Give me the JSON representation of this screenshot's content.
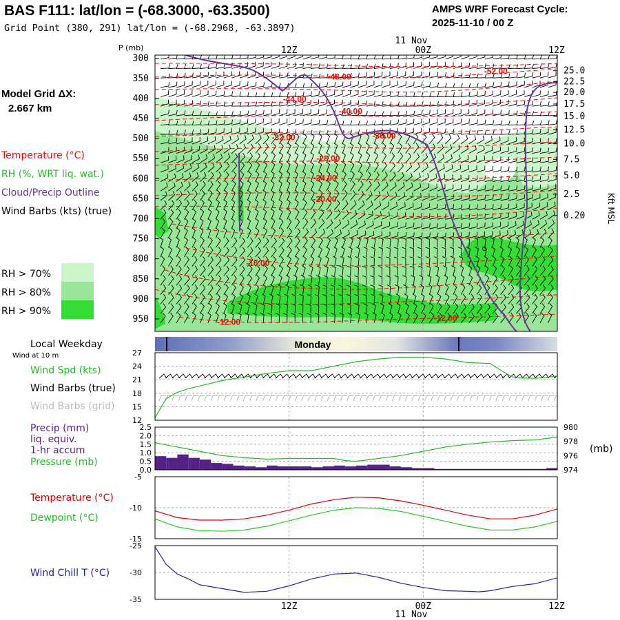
{
  "header": {
    "title": "BAS F111:  lat/lon = (-68.3000, -63.3500)",
    "subtitle": "Grid Point (380, 291) lat/lon = (-68.2968, -63.3897)",
    "cycle_line1": "AMPS WRF Forecast Cycle:",
    "cycle_line2": "2025-11-10 / 00  Z"
  },
  "model_grid": {
    "label": "Model Grid ΔX:",
    "value": "2.667 km"
  },
  "legend": {
    "temperature": "Temperature (°C)",
    "rh": "RH (%, WRT liq. wat.)",
    "cloud": "Cloud/Precip Outline",
    "wind": "Wind Barbs (kts) (true)",
    "rh70": "RH > 70%",
    "rh80": "RH > 80%",
    "rh90": "RH > 90%"
  },
  "colors": {
    "rh70": "#ccf5cc",
    "rh80": "#99e699",
    "rh90": "#33dd33",
    "temp": "#ff0000",
    "cloud": "#663399",
    "dewpoint": "#22cc22",
    "windchill": "#2222aa",
    "precip": "#552288"
  },
  "time_axis": {
    "top_labels": [
      "12Z",
      "00Z",
      "12Z"
    ],
    "date_label": "11 Nov",
    "bottom_labels": [
      "12Z",
      "00Z",
      "12Z"
    ],
    "times_hours": [
      12,
      24,
      36
    ],
    "range_hours": [
      0,
      36
    ]
  },
  "local_weekday": {
    "label": "Local Weekday",
    "sublabel": "Wind at 10 m",
    "day": "Monday"
  },
  "chart_data": [
    {
      "type": "heatmap",
      "title": "Time-height cross section",
      "ylabel_left": "P (mb)",
      "ylabel_right": "Kft MSL",
      "pressure_ticks": [
        300,
        350,
        400,
        450,
        500,
        550,
        600,
        650,
        700,
        750,
        800,
        850,
        900,
        950
      ],
      "height_ticks": [
        "25.0",
        "22.5",
        "20.0",
        "17.5",
        "15.0",
        "12.5",
        "10.0",
        "7.5",
        "5.0",
        "2.5",
        "0.20"
      ],
      "height_tick_pressures": [
        331,
        358,
        385,
        414,
        445,
        478,
        513,
        552,
        593,
        639,
        692
      ],
      "temp_contour_labels": [
        {
          "text": "-48.00",
          "t": 16.5,
          "p": 346
        },
        {
          "text": "-52.00",
          "t": 30.5,
          "p": 332
        },
        {
          "text": "-44.00",
          "t": 12.5,
          "p": 402
        },
        {
          "text": "-40.00",
          "t": 17.5,
          "p": 432
        },
        {
          "text": "-32.00",
          "t": 11.5,
          "p": 497
        },
        {
          "text": "-36.00",
          "t": 20.5,
          "p": 493
        },
        {
          "text": "-28.00",
          "t": 15.5,
          "p": 550
        },
        {
          "text": "-24.00",
          "t": 15.2,
          "p": 599
        },
        {
          "text": "-20.00",
          "t": 15.2,
          "p": 651
        },
        {
          "text": "-16.00",
          "t": 9.2,
          "p": 811
        },
        {
          "text": "-12.00",
          "t": 6.6,
          "p": 958
        },
        {
          "text": "-12.00",
          "t": 26.0,
          "p": 948
        }
      ]
    },
    {
      "type": "line",
      "ylabel": "Wind Spd (kts)",
      "extra_labels": [
        "Wind Barbs (true)",
        "Wind Barbs (grid)"
      ],
      "ylim": [
        12,
        27
      ],
      "yticks": [
        12,
        15,
        18,
        21,
        24,
        27
      ],
      "x": [
        0,
        1,
        2,
        3,
        4,
        5,
        6,
        8,
        10,
        12,
        14,
        16,
        18,
        20,
        22,
        24,
        26,
        28,
        30,
        31,
        32,
        33,
        34,
        35,
        36
      ],
      "series": [
        {
          "name": "Wind Spd",
          "values": [
            12.5,
            16.8,
            18.2,
            19.0,
            19.6,
            20.2,
            20.8,
            21.6,
            22.4,
            23.0,
            23.0,
            24.0,
            25.0,
            25.6,
            26.0,
            26.0,
            25.6,
            24.8,
            24.6,
            23.0,
            21.6,
            21.4,
            21.3,
            21.5,
            21.8
          ]
        }
      ]
    },
    {
      "type": "bar",
      "ylabel": "Precip (mm)",
      "extra_labels": [
        "liq. equiv.",
        "1-hr accum"
      ],
      "ylabel_right": "Pressure (mb)",
      "right_unit": "(mb)",
      "ylim": [
        0,
        2.5
      ],
      "yticks": [
        "0.0",
        "0.5",
        "1.0",
        "1.5",
        "2.0",
        "2.5"
      ],
      "ylim_right": [
        974,
        980
      ],
      "yticks_right": [
        974,
        976,
        978,
        980
      ],
      "x": [
        0,
        1,
        2,
        3,
        4,
        5,
        6,
        7,
        8,
        9,
        10,
        11,
        12,
        13,
        14,
        15,
        16,
        17,
        18,
        19,
        20,
        21,
        22,
        23,
        24,
        25,
        26,
        27,
        28,
        29,
        30,
        31,
        32,
        33,
        34,
        35
      ],
      "precip": [
        0.8,
        0.7,
        0.9,
        0.7,
        0.6,
        0.4,
        0.35,
        0.25,
        0.2,
        0.15,
        0.25,
        0.2,
        0.2,
        0.2,
        0.15,
        0.2,
        0.25,
        0.2,
        0.25,
        0.3,
        0.3,
        0.2,
        0.15,
        0.1,
        0.1,
        0.05,
        0.05,
        0.05,
        0.05,
        0.05,
        0.05,
        0.05,
        0.05,
        0.05,
        0.05,
        0.1
      ],
      "pressure_x": [
        0,
        2,
        4,
        6,
        8,
        10,
        12,
        14,
        16,
        17,
        18,
        20,
        22,
        24,
        26,
        28,
        30,
        32,
        34,
        36
      ],
      "pressure": [
        977.8,
        977.2,
        976.6,
        976.0,
        975.7,
        975.5,
        975.6,
        975.6,
        975.6,
        975.3,
        975.2,
        975.6,
        976.0,
        976.6,
        977.2,
        977.6,
        977.9,
        978.1,
        978.2,
        978.6
      ]
    },
    {
      "type": "line",
      "ylim": [
        -15,
        -5
      ],
      "yticks": [
        -5,
        -10,
        -15
      ],
      "x": [
        0,
        2,
        4,
        6,
        8,
        10,
        12,
        14,
        16,
        18,
        20,
        22,
        24,
        26,
        28,
        30,
        32,
        34,
        36
      ],
      "series": [
        {
          "name": "Temperature (°C)",
          "values": [
            -10.5,
            -11.6,
            -12.0,
            -12.0,
            -11.8,
            -11.2,
            -10.4,
            -9.4,
            -8.7,
            -8.3,
            -8.4,
            -8.9,
            -9.6,
            -10.4,
            -11.2,
            -11.8,
            -11.8,
            -11.2,
            -10.2
          ]
        },
        {
          "name": "Dewpoint (°C)",
          "values": [
            -11.8,
            -13.1,
            -13.7,
            -13.8,
            -13.6,
            -13.0,
            -12.1,
            -11.2,
            -10.4,
            -10.0,
            -10.1,
            -10.6,
            -11.4,
            -12.2,
            -13.0,
            -13.6,
            -13.6,
            -13.1,
            -12.2
          ]
        }
      ]
    },
    {
      "type": "line",
      "ylabel": "Wind Chill T (°C)",
      "ylim": [
        -35,
        -25
      ],
      "yticks": [
        -25,
        -30,
        -35
      ],
      "x": [
        0,
        1,
        2,
        3,
        4,
        6,
        8,
        10,
        12,
        14,
        16,
        18,
        20,
        22,
        24,
        26,
        28,
        29,
        30,
        32,
        34,
        36
      ],
      "series": [
        {
          "name": "Wind Chill T",
          "values": [
            -25.2,
            -28.5,
            -30.3,
            -31.2,
            -32.3,
            -33.0,
            -33.7,
            -33.5,
            -32.5,
            -31.2,
            -30.3,
            -30.1,
            -30.9,
            -32.0,
            -32.8,
            -33.4,
            -33.5,
            -33.6,
            -33.4,
            -32.6,
            -32.1,
            -31.0
          ]
        }
      ]
    }
  ]
}
